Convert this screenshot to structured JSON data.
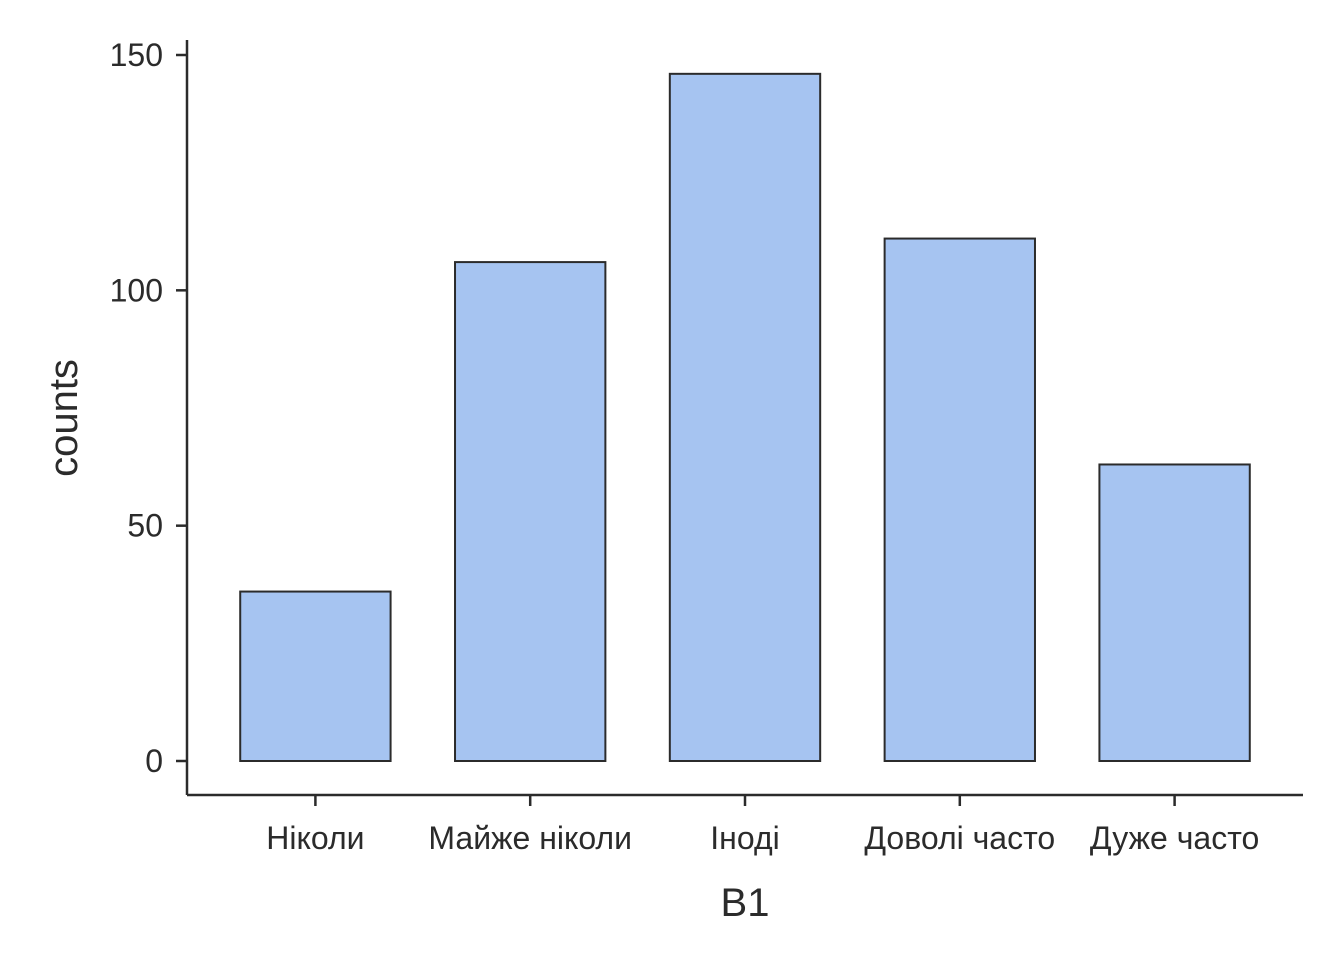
{
  "chart_data": {
    "type": "bar",
    "categories": [
      "Ніколи",
      "Майже ніколи",
      "Іноді",
      "Доволі часто",
      "Дуже часто"
    ],
    "values": [
      36,
      106,
      146,
      111,
      63
    ],
    "xlabel": "B1",
    "ylabel": "counts",
    "ylim": [
      0,
      150
    ],
    "yticks": [
      0,
      50,
      100,
      150
    ],
    "ytick_labels": [
      "0",
      "50",
      "100",
      "150"
    ],
    "grid": false,
    "legend": "none",
    "colors": {
      "bar_fill": "#a6c4f1",
      "bar_edge": "#2b2b2b",
      "axis": "#2b2b2b"
    }
  }
}
